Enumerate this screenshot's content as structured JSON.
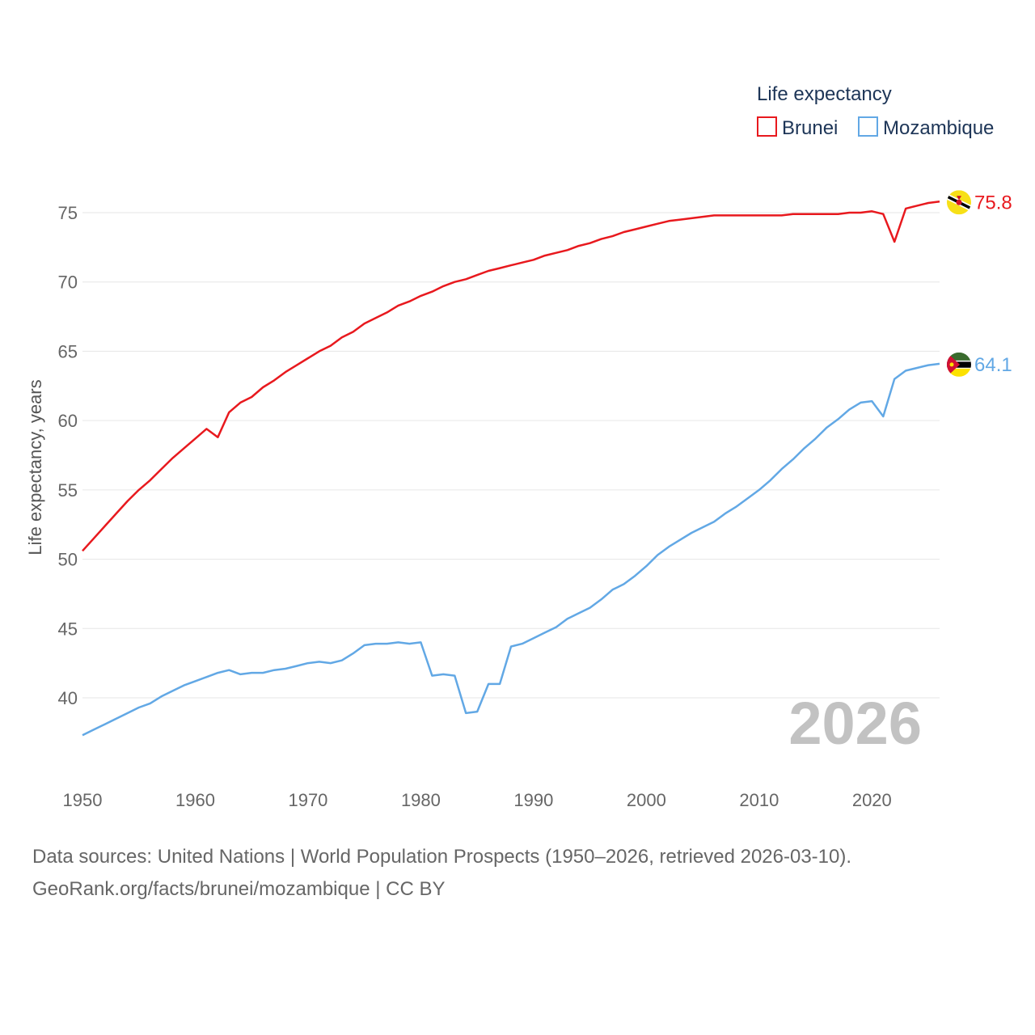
{
  "chart_data": {
    "type": "line",
    "year_label": "2026",
    "ylabel": "Life expectancy, years",
    "xlabel": "",
    "xlim": [
      1950,
      2026
    ],
    "ylim": [
      36,
      78
    ],
    "x_ticks": [
      "1950",
      "1960",
      "1970",
      "1980",
      "1990",
      "2000",
      "2010",
      "2020"
    ],
    "y_ticks": [
      "40",
      "45",
      "50",
      "55",
      "60",
      "65",
      "70",
      "75"
    ],
    "legend": {
      "title": "Life expectancy",
      "position": "top-right"
    },
    "x": [
      1950,
      1951,
      1952,
      1953,
      1954,
      1955,
      1956,
      1957,
      1958,
      1959,
      1960,
      1961,
      1962,
      1963,
      1964,
      1965,
      1966,
      1967,
      1968,
      1969,
      1970,
      1971,
      1972,
      1973,
      1974,
      1975,
      1976,
      1977,
      1978,
      1979,
      1980,
      1981,
      1982,
      1983,
      1984,
      1985,
      1986,
      1987,
      1988,
      1989,
      1990,
      1991,
      1992,
      1993,
      1994,
      1995,
      1996,
      1997,
      1998,
      1999,
      2000,
      2001,
      2002,
      2003,
      2004,
      2005,
      2006,
      2007,
      2008,
      2009,
      2010,
      2011,
      2012,
      2013,
      2014,
      2015,
      2016,
      2017,
      2018,
      2019,
      2020,
      2021,
      2022,
      2023,
      2024,
      2025,
      2026
    ],
    "series": [
      {
        "name": "Brunei",
        "color": "#e8191e",
        "end_label": "75.8",
        "flag": "brunei-flag",
        "values": [
          50.6,
          51.5,
          52.4,
          53.3,
          54.2,
          55.0,
          55.7,
          56.5,
          57.3,
          58.0,
          58.7,
          59.4,
          58.8,
          60.6,
          61.3,
          61.7,
          62.4,
          62.9,
          63.5,
          64.0,
          64.5,
          65.0,
          65.4,
          66.0,
          66.4,
          67.0,
          67.4,
          67.8,
          68.3,
          68.6,
          69.0,
          69.3,
          69.7,
          70.0,
          70.2,
          70.5,
          70.8,
          71.0,
          71.2,
          71.4,
          71.6,
          71.9,
          72.1,
          72.3,
          72.6,
          72.8,
          73.1,
          73.3,
          73.6,
          73.8,
          74.0,
          74.2,
          74.4,
          74.5,
          74.6,
          74.7,
          74.8,
          74.8,
          74.8,
          74.8,
          74.8,
          74.8,
          74.8,
          74.9,
          74.9,
          74.9,
          74.9,
          74.9,
          75.0,
          75.0,
          75.1,
          74.9,
          72.9,
          75.3,
          75.5,
          75.7,
          75.8
        ]
      },
      {
        "name": "Mozambique",
        "color": "#62a8e5",
        "end_label": "64.1",
        "flag": "mozambique-flag",
        "values": [
          37.3,
          37.7,
          38.1,
          38.5,
          38.9,
          39.3,
          39.6,
          40.1,
          40.5,
          40.9,
          41.2,
          41.5,
          41.8,
          42.0,
          41.7,
          41.8,
          41.8,
          42.0,
          42.1,
          42.3,
          42.5,
          42.6,
          42.5,
          42.7,
          43.2,
          43.8,
          43.9,
          43.9,
          44.0,
          43.9,
          44.0,
          41.6,
          41.7,
          41.6,
          38.9,
          39.0,
          41.0,
          41.0,
          43.7,
          43.9,
          44.3,
          44.7,
          45.1,
          45.7,
          46.1,
          46.5,
          47.1,
          47.8,
          48.2,
          48.8,
          49.5,
          50.3,
          50.9,
          51.4,
          51.9,
          52.3,
          52.7,
          53.3,
          53.8,
          54.4,
          55.0,
          55.7,
          56.5,
          57.2,
          58.0,
          58.7,
          59.5,
          60.1,
          60.8,
          61.3,
          61.4,
          60.3,
          63.0,
          63.6,
          63.8,
          64.0,
          64.1
        ]
      }
    ]
  },
  "footer": {
    "line1": "Data sources: United Nations | World Population Prospects (1950–2026, retrieved 2026-03-10).",
    "line2": "GeoRank.org/facts/brunei/mozambique | CC BY"
  }
}
